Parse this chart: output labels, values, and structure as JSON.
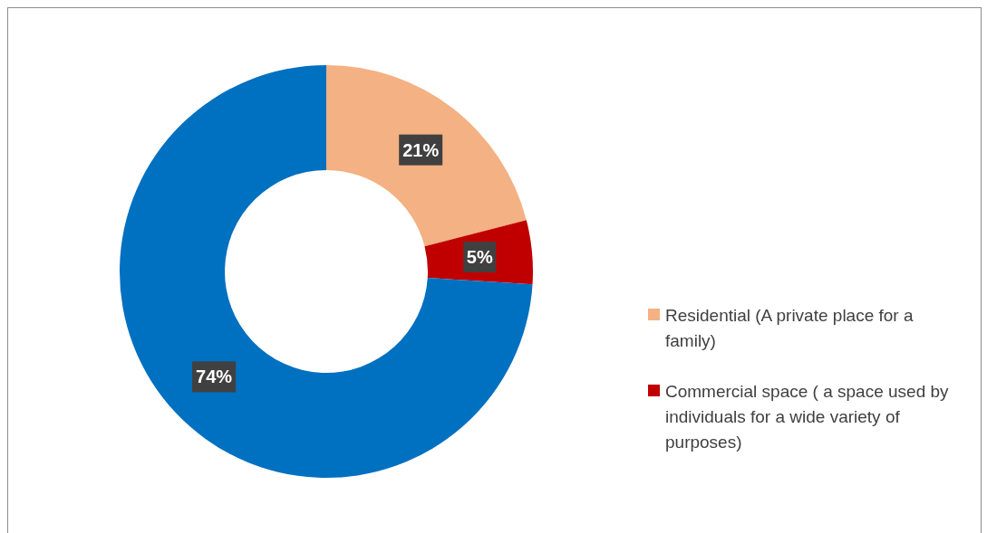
{
  "chart_data": {
    "type": "donut",
    "categories": [
      "Residential (A private place for a family)",
      "Commercial space ( a space used by individuals for a wide variety of purposes)",
      null
    ],
    "values": [
      21,
      5,
      74
    ],
    "colors": [
      "#f4b183",
      "#c00000",
      "#0070c0"
    ],
    "value_labels": [
      "21%",
      "5%",
      "74%"
    ],
    "legend": "right"
  }
}
